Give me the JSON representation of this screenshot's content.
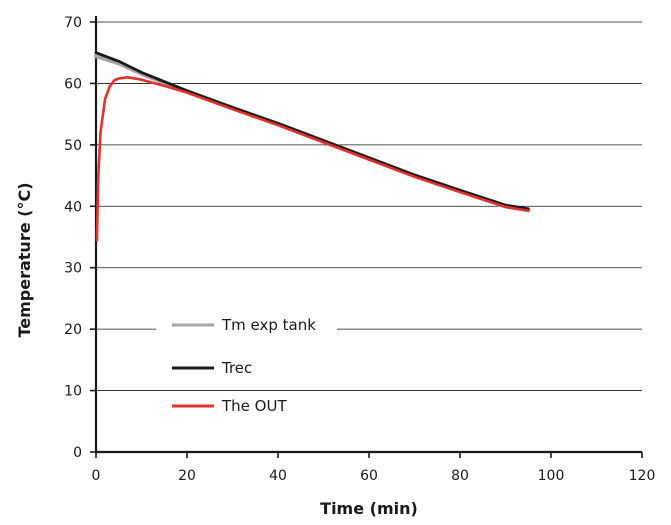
{
  "chart_data": {
    "type": "line",
    "title": "",
    "xlabel": "Time (min)",
    "ylabel": "Temperature (°C)",
    "xlim": [
      0,
      120
    ],
    "ylim": [
      0,
      70
    ],
    "xticks": [
      0,
      20,
      40,
      60,
      80,
      100,
      120
    ],
    "yticks": [
      0,
      10,
      20,
      30,
      40,
      50,
      60,
      70
    ],
    "grid": "horizontal",
    "legend_position": "bottom-left",
    "series": [
      {
        "name": "Tm exp tank",
        "color": "#a6a6a6",
        "x": [
          0,
          5,
          10,
          20,
          30,
          40,
          50,
          60,
          70,
          80,
          90,
          95
        ],
        "y": [
          64.5,
          63.3,
          61.6,
          58.7,
          56.0,
          53.4,
          50.6,
          47.8,
          45.0,
          42.5,
          40.0,
          39.4
        ]
      },
      {
        "name": "Trec",
        "color": "#1a1a1a",
        "x": [
          0,
          5,
          10,
          20,
          30,
          40,
          50,
          60,
          70,
          80,
          90,
          95
        ],
        "y": [
          65.0,
          63.6,
          61.8,
          58.8,
          56.1,
          53.5,
          50.7,
          47.9,
          45.1,
          42.6,
          40.2,
          39.6
        ]
      },
      {
        "name": "The OUT",
        "color": "#e2322b",
        "x": [
          0.2,
          0.5,
          1,
          2,
          3,
          4,
          5,
          7,
          10,
          15,
          20,
          30,
          40,
          50,
          60,
          70,
          80,
          90,
          95
        ],
        "y": [
          34.5,
          45.0,
          52.0,
          57.5,
          59.5,
          60.5,
          60.8,
          61.0,
          60.6,
          59.6,
          58.5,
          55.8,
          53.2,
          50.4,
          47.6,
          44.8,
          42.3,
          39.9,
          39.3
        ]
      }
    ]
  }
}
